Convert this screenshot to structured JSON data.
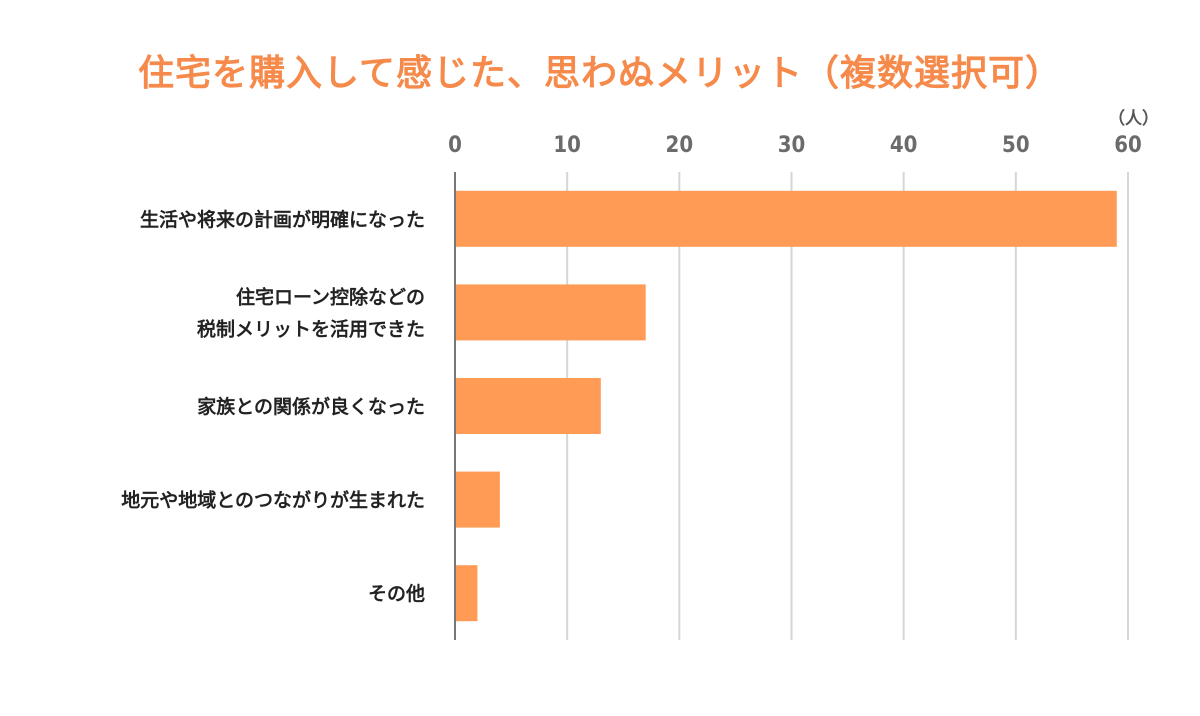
{
  "chart_data": {
    "type": "bar",
    "orientation": "horizontal",
    "title": "住宅を購入して感じた、思わぬメリット（複数選択可）",
    "unit_label": "（人）",
    "categories": [
      [
        "生活や将来の計画が明確になった"
      ],
      [
        "住宅ローン控除などの",
        "税制メリットを活用できた"
      ],
      [
        "家族との関係が良くなった"
      ],
      [
        "地元や地域とのつながりが生まれた"
      ],
      [
        "その他"
      ]
    ],
    "values": [
      59,
      17,
      13,
      4,
      2
    ],
    "xlim": [
      0,
      60
    ],
    "xticks": [
      "0",
      "10",
      "20",
      "30",
      "40",
      "50",
      "60"
    ],
    "grid": true,
    "axis_position": "top",
    "colors": {
      "bar": "#FF9B55",
      "title": "#F58A4B",
      "grid": "#d6d6d6",
      "axis": "#777777"
    }
  }
}
